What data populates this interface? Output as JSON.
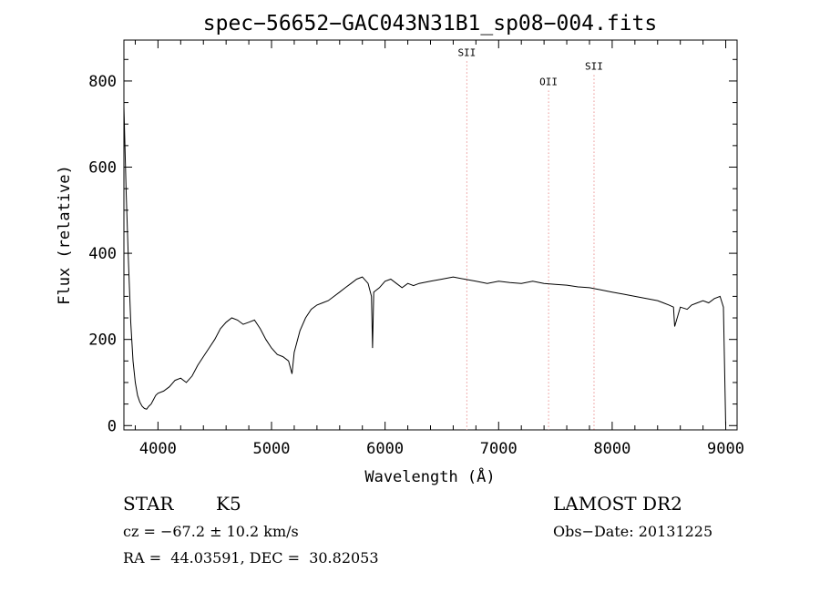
{
  "chart_data": {
    "type": "line",
    "title": "spec−56652−GAC043N31B1_sp08−004.fits",
    "xlabel": "Wavelength (Å)",
    "ylabel": "Flux (relative)",
    "xlim": [
      3700,
      9100
    ],
    "ylim": [
      -10,
      895
    ],
    "x_ticks": [
      4000,
      5000,
      6000,
      7000,
      8000,
      9000
    ],
    "y_ticks": [
      0,
      200,
      400,
      600,
      800
    ],
    "grid": false,
    "legend": "none",
    "lines": [
      {
        "label": "SII",
        "x": 6720,
        "label_flux": 858
      },
      {
        "label": "OII",
        "x": 7440,
        "label_flux": 790
      },
      {
        "label": "SII",
        "x": 7840,
        "label_flux": 826
      }
    ],
    "series": [
      {
        "x": [
          3700,
          3720,
          3740,
          3760,
          3780,
          3800,
          3820,
          3840,
          3860,
          3880,
          3900,
          3920,
          3940,
          3960,
          3980,
          4000,
          4050,
          4100,
          4150,
          4200,
          4250,
          4300,
          4350,
          4400,
          4450,
          4500,
          4550,
          4600,
          4650,
          4700,
          4750,
          4800,
          4850,
          4900,
          4950,
          5000,
          5050,
          5100,
          5150,
          5180,
          5200,
          5250,
          5300,
          5350,
          5400,
          5450,
          5500,
          5550,
          5600,
          5650,
          5700,
          5750,
          5800,
          5850,
          5880,
          5890,
          5900,
          5950,
          6000,
          6050,
          6100,
          6150,
          6200,
          6250,
          6300,
          6400,
          6500,
          6600,
          6700,
          6800,
          6900,
          7000,
          7100,
          7200,
          7300,
          7400,
          7500,
          7600,
          7700,
          7800,
          7900,
          8000,
          8100,
          8200,
          8300,
          8400,
          8450,
          8500,
          8540,
          8550,
          8600,
          8660,
          8700,
          8750,
          8800,
          8850,
          8900,
          8950,
          8980,
          9000
        ],
        "values": [
          740,
          540,
          380,
          240,
          150,
          100,
          70,
          55,
          45,
          40,
          38,
          45,
          50,
          60,
          70,
          75,
          80,
          90,
          105,
          110,
          100,
          115,
          140,
          160,
          180,
          200,
          225,
          240,
          250,
          245,
          235,
          240,
          245,
          225,
          200,
          180,
          165,
          160,
          150,
          120,
          170,
          220,
          250,
          270,
          280,
          285,
          290,
          300,
          310,
          320,
          330,
          340,
          345,
          330,
          300,
          180,
          310,
          320,
          335,
          340,
          330,
          320,
          330,
          325,
          330,
          335,
          340,
          345,
          340,
          335,
          330,
          335,
          332,
          330,
          335,
          330,
          328,
          326,
          322,
          320,
          315,
          310,
          305,
          300,
          295,
          290,
          285,
          280,
          275,
          230,
          275,
          270,
          280,
          285,
          290,
          285,
          295,
          300,
          275,
          0
        ]
      }
    ]
  },
  "info": {
    "object_class": "STAR",
    "subclass": "K5",
    "survey": "LAMOST DR2",
    "cz": "cz = −67.2 ± 10.2 km/s",
    "obs_date": "Obs−Date: 20131225",
    "radec": "RA =  44.03591, DEC =  30.82053"
  }
}
